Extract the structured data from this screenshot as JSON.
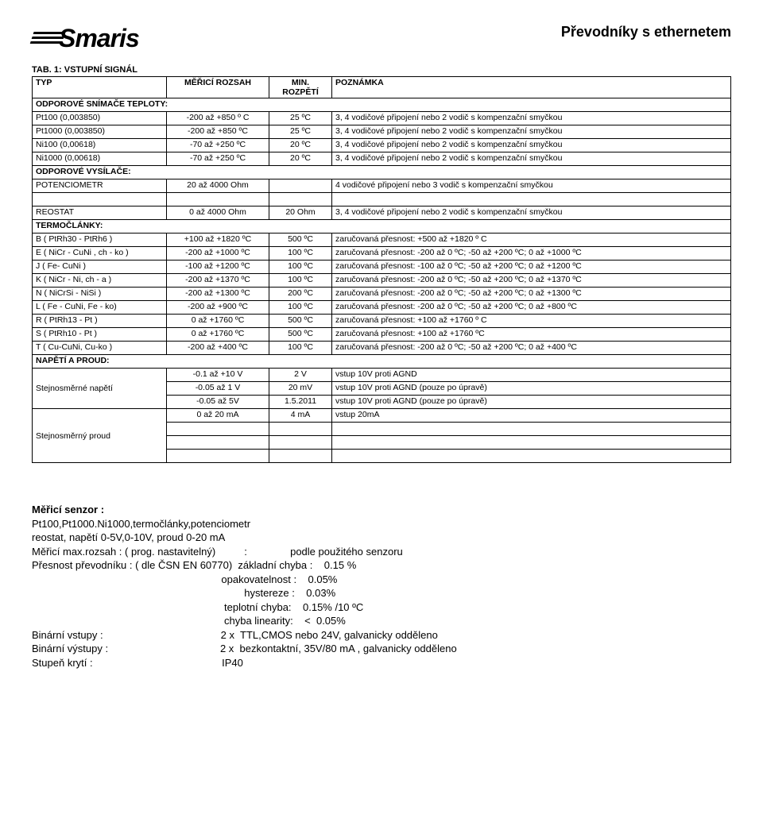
{
  "header": {
    "logo_text": "Smaris",
    "title": "Převodníky s ethernetem"
  },
  "tab_title": "TAB. 1: VSTUPNÍ SIGNÁL",
  "columns": {
    "c1": "TYP",
    "c2": "MĚŘICÍ ROZSAH",
    "c3": "MIN. ROZPĚTÍ",
    "c4": "POZNÁMKA"
  },
  "sections": {
    "s1": "ODPOROVÉ SNÍMAČE TEPLOTY:",
    "s2": "ODPOROVÉ VYSÍLAČE:",
    "s3": "TERMOČLÁNKY:",
    "s4": "NAPĚTÍ A PROUD:"
  },
  "r": {
    "pt100": {
      "a": "Pt100 (0,003850)",
      "b": "-200 až +850 º C",
      "c": "25 ºC",
      "d": "3, 4 vodičové připojení nebo 2 vodič s kompenzační smyčkou"
    },
    "pt1000": {
      "a": "Pt1000 (0,003850)",
      "b": "-200 až +850  ºC",
      "c": "25 ºC",
      "d": "3, 4 vodičové připojení nebo 2 vodič s kompenzační smyčkou"
    },
    "ni100": {
      "a": "Ni100 (0,00618)",
      "b": "-70 až +250  ºC",
      "c": "20 ºC",
      "d": "3, 4 vodičové připojení nebo 2 vodič s kompenzační smyčkou"
    },
    "ni1000": {
      "a": "Ni1000 (0,00618)",
      "b": "-70 až +250  ºC",
      "c": "20 ºC",
      "d": "3, 4 vodičové připojení nebo 2 vodič s kompenzační smyčkou"
    },
    "pot": {
      "a": "POTENCIOMETR",
      "b": "20 až 4000 Ohm",
      "c": "",
      "d": "4 vodičové připojení nebo 3 vodič s kompenzační smyčkou"
    },
    "reo": {
      "a": "REOSTAT",
      "b": "0 až 4000 Ohm",
      "c": "20 Ohm",
      "d": "3, 4 vodičové připojení nebo 2 vodič s kompenzační smyčkou"
    },
    "tcB": {
      "a": "B ( PtRh30 - PtRh6 )",
      "b": "+100 až +1820 ºC",
      "c": "500 ºC",
      "d": "zaručovaná přesnost: +500 až +1820 º C"
    },
    "tcE": {
      "a": "E ( NiCr - CuNi , ch - ko )",
      "b": "-200 až +1000 ºC",
      "c": "100 ºC",
      "d": "zaručovaná přesnost: -200 až 0 ºC; -50 až +200 ºC; 0 až +1000 ºC"
    },
    "tcJ": {
      "a": "J ( Fe- CuNi )",
      "b": "-100 až +1200 ºC",
      "c": "100 ºC",
      "d": "zaručovaná přesnost: -100 až 0 ºC; -50 až +200 ºC; 0 až +1200 ºC"
    },
    "tcK": {
      "a": "K ( NiCr - Ni, ch - a )",
      "b": "-200 až +1370 ºC",
      "c": "100 ºC",
      "d": "zaručovaná přesnost: -200 až 0 ºC; -50 až +200 ºC; 0 až +1370 ºC"
    },
    "tcN": {
      "a": "N ( NiCrSi - NiSi )",
      "b": "-200 až +1300 ºC",
      "c": "200 ºC",
      "d": "zaručovaná přesnost: -200 až 0 ºC; -50 až +200 ºC; 0 až +1300 ºC"
    },
    "tcL": {
      "a": "L ( Fe - CuNi, Fe - ko)",
      "b": "-200 až +900  ºC",
      "c": "100 ºC",
      "d": "zaručovaná přesnost: -200 až 0 ºC; -50 až +200 ºC; 0 až +800 ºC"
    },
    "tcR": {
      "a": "R ( PtRh13 - Pt )",
      "b": "0 až +1760  ºC",
      "c": "500 ºC",
      "d": "zaručovaná přesnost: +100 až +1760 º C"
    },
    "tcS": {
      "a": "S ( PtRh10 - Pt )",
      "b": "0 až +1760  ºC",
      "c": "500 ºC",
      "d": "zaručovaná přesnost: +100 až +1760 ºC"
    },
    "tcT": {
      "a": "T ( Cu-CuNi, Cu-ko )",
      "b": "-200 až +400  ºC",
      "c": "100 ºC",
      "d": "zaručovaná přesnost: -200 až 0 ºC; -50 až +200 ºC; 0 až +400 ºC"
    },
    "dcv_label": "Stejnosměrné napětí",
    "dci_label": "Stejnosměrný proud",
    "v1": {
      "b": "-0.1 až +10 V",
      "c": "2 V",
      "d": "vstup 10V proti AGND"
    },
    "v2": {
      "b": "-0.05 až 1 V",
      "c": "20 mV",
      "d": "vstup 10V proti AGND (pouze po úpravě)"
    },
    "v3": {
      "b": "-0.05 až 5V",
      "c": "1.5.2011",
      "d": "vstup 10V proti AGND (pouze po úpravě)"
    },
    "i1": {
      "b": "0 až 20 mA",
      "c": "4 mA",
      "d": "vstup 20mA"
    }
  },
  "specs": {
    "l1a": "Měřicí senzor  :",
    "l2": "Pt100,Pt1000.Ni1000,termočlánky,potenciometr",
    "l3": "reostat, napětí 0-5V,0-10V, proud 0-20 mA",
    "l4": "Měřicí max.rozsah : ( prog. nastavitelný)          :               podle použitého senzoru",
    "l5": "Přesnost převodníku : ( dle ČSN EN 60770)  základní chyba :    0.15 %",
    "l6": "                                                                  opakovatelnost :    0.05%",
    "l7": "                                                                          hystereze :    0.03%",
    "l8": "                                                                   teplotní chyba:    0.15% /10 ºC",
    "l9": "                                                                   chyba linearity:    <  0.05%",
    "l10": "Binární vstupy :                                         2 x  TTL,CMOS nebo 24V, galvanicky odděleno",
    "l11": "Binární výstupy :                                       2 x  bezkontaktní, 35V/80 mA , galvanicky odděleno",
    "l12": "Stupeň krytí :                                             IP40"
  }
}
